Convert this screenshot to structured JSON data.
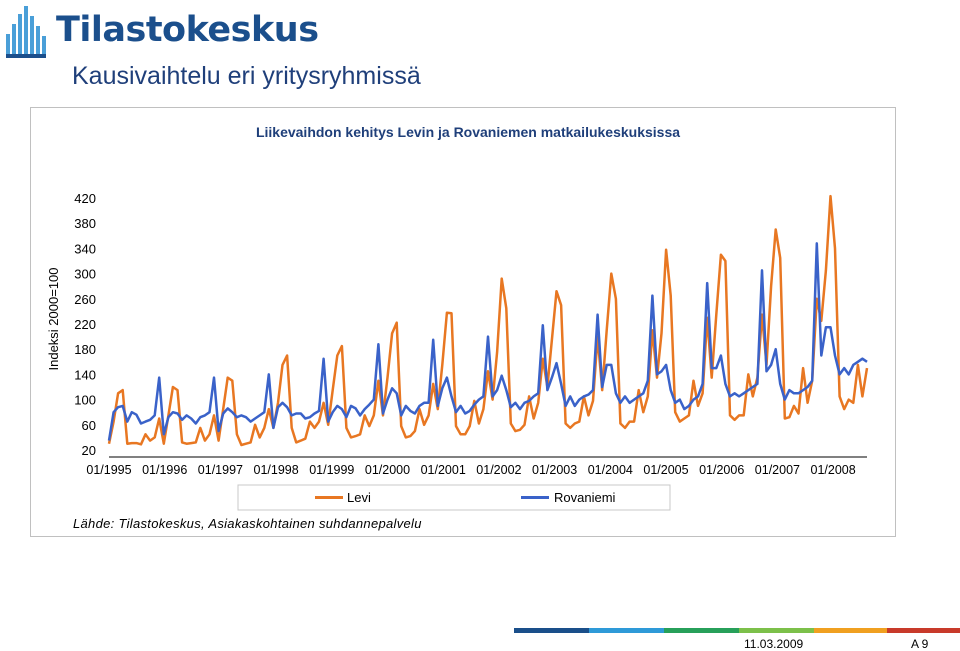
{
  "header": {
    "logo_text": "Tilastokeskus",
    "logo_icon": "tilastokeskus-bar-logo-icon",
    "page_title": "Kausivaihtelu eri yritysryhmissä"
  },
  "footer": {
    "date": "11.03.2009",
    "page": "A 9"
  },
  "chart_data": {
    "type": "line",
    "title": "Liikevaihdon kehitys Levin ja Rovaniemen matkailukeskuksissa",
    "ylabel": "Indeksi 2000=100",
    "xlabel": "",
    "ylim": [
      20,
      420
    ],
    "yticks": [
      20,
      60,
      100,
      140,
      180,
      220,
      260,
      300,
      340,
      380,
      420
    ],
    "x_start": "01/1995",
    "x_tick_labels": [
      "01/1995",
      "01/1996",
      "01/1997",
      "01/1998",
      "01/1999",
      "01/2000",
      "01/2001",
      "01/2002",
      "01/2003",
      "01/2004",
      "01/2005",
      "01/2006",
      "01/2007",
      "01/2008"
    ],
    "grid": false,
    "legend_position": "bottom",
    "source": "Lähde: Tilastokeskus, Asiakaskohtainen suhdannepalvelu",
    "series": [
      {
        "name": "Levi",
        "color": "#e87722",
        "values": [
          30,
          65,
          110,
          115,
          30,
          31,
          31,
          29,
          45,
          35,
          40,
          70,
          30,
          75,
          120,
          115,
          32,
          30,
          31,
          32,
          55,
          35,
          45,
          75,
          35,
          85,
          135,
          130,
          45,
          28,
          30,
          32,
          60,
          40,
          55,
          85,
          55,
          95,
          155,
          170,
          55,
          32,
          35,
          38,
          65,
          55,
          65,
          95,
          60,
          115,
          170,
          185,
          55,
          40,
          42,
          45,
          75,
          58,
          75,
          130,
          75,
          135,
          205,
          222,
          58,
          40,
          42,
          50,
          85,
          60,
          75,
          125,
          85,
          155,
          238,
          237,
          58,
          45,
          45,
          58,
          98,
          62,
          85,
          145,
          100,
          175,
          292,
          245,
          62,
          50,
          52,
          60,
          105,
          70,
          95,
          165,
          120,
          195,
          272,
          250,
          62,
          55,
          62,
          65,
          105,
          75,
          98,
          200,
          115,
          210,
          300,
          260,
          62,
          55,
          65,
          65,
          115,
          80,
          105,
          210,
          135,
          205,
          338,
          265,
          80,
          65,
          70,
          75,
          130,
          90,
          110,
          230,
          135,
          235,
          330,
          320,
          75,
          68,
          75,
          75,
          140,
          105,
          135,
          235,
          155,
          280,
          370,
          325,
          70,
          72,
          90,
          78,
          150,
          95,
          130,
          260,
          225,
          305,
          423,
          340,
          105,
          85,
          100,
          95,
          155,
          105,
          150
        ]
      },
      {
        "name": "Rovaniemi",
        "color": "#3a62c9",
        "values": [
          35,
          80,
          88,
          90,
          65,
          80,
          76,
          62,
          65,
          68,
          75,
          135,
          45,
          72,
          80,
          78,
          68,
          75,
          70,
          62,
          72,
          75,
          80,
          135,
          50,
          78,
          86,
          80,
          72,
          75,
          72,
          65,
          70,
          75,
          80,
          140,
          55,
          88,
          95,
          88,
          75,
          78,
          78,
          70,
          72,
          78,
          82,
          165,
          65,
          80,
          90,
          85,
          72,
          90,
          86,
          75,
          85,
          92,
          100,
          188,
          78,
          100,
          118,
          110,
          75,
          90,
          82,
          78,
          90,
          95,
          95,
          195,
          90,
          118,
          135,
          105,
          80,
          90,
          78,
          82,
          92,
          100,
          105,
          200,
          105,
          115,
          138,
          115,
          88,
          95,
          85,
          95,
          98,
          105,
          110,
          218,
          115,
          135,
          158,
          125,
          90,
          105,
          90,
          100,
          105,
          108,
          115,
          235,
          120,
          155,
          155,
          110,
          95,
          105,
          95,
          100,
          105,
          110,
          130,
          265,
          140,
          145,
          155,
          115,
          95,
          100,
          85,
          90,
          100,
          105,
          125,
          285,
          150,
          150,
          170,
          125,
          105,
          110,
          105,
          110,
          115,
          120,
          125,
          305,
          145,
          155,
          180,
          125,
          100,
          115,
          110,
          110,
          115,
          120,
          130,
          348,
          170,
          215,
          215,
          170,
          140,
          150,
          140,
          155,
          160,
          165,
          160
        ]
      }
    ]
  }
}
